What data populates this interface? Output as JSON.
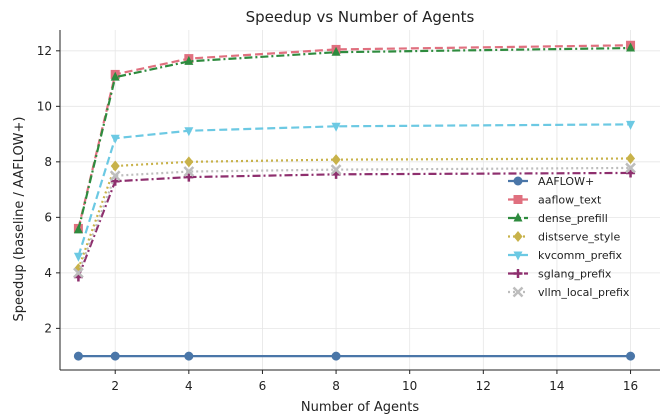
{
  "chart_data": {
    "type": "line",
    "title": "Speedup vs Number of Agents",
    "xlabel": "Number of Agents",
    "ylabel": "Speedup (baseline / AAFLOW+)",
    "x": [
      1,
      2,
      4,
      8,
      16
    ],
    "xlim": [
      0.5,
      16.8
    ],
    "ylim": [
      0.5,
      12.75
    ],
    "xticks": [
      2,
      4,
      6,
      8,
      10,
      12,
      14,
      16
    ],
    "yticks": [
      2,
      4,
      6,
      8,
      10,
      12
    ],
    "grid": true,
    "legend_position": "center-right",
    "series": [
      {
        "name": "AAFLOW+",
        "values": [
          1.0,
          1.0,
          1.0,
          1.0,
          1.0
        ],
        "color": "#4a76a8",
        "dash": "solid",
        "marker": "circle"
      },
      {
        "name": "aaflow_text",
        "values": [
          5.6,
          11.15,
          11.72,
          12.05,
          12.2
        ],
        "color": "#e0707f",
        "dash": "dashed",
        "marker": "square"
      },
      {
        "name": "dense_prefill",
        "values": [
          5.55,
          11.05,
          11.62,
          11.95,
          12.1
        ],
        "color": "#2e8b3e",
        "dash": "dashdot",
        "marker": "triangle-up"
      },
      {
        "name": "distserve_style",
        "values": [
          4.15,
          7.85,
          8.0,
          8.08,
          8.12
        ],
        "color": "#c8b24a",
        "dash": "dotted",
        "marker": "diamond"
      },
      {
        "name": "kvcomm_prefix",
        "values": [
          4.6,
          8.85,
          9.12,
          9.28,
          9.35
        ],
        "color": "#6cc9e3",
        "dash": "dashed",
        "marker": "triangle-down"
      },
      {
        "name": "sglang_prefix",
        "values": [
          3.85,
          7.3,
          7.45,
          7.55,
          7.6
        ],
        "color": "#8e2f6e",
        "dash": "dashdot",
        "marker": "plus"
      },
      {
        "name": "vllm_local_prefix",
        "values": [
          4.0,
          7.5,
          7.65,
          7.72,
          7.78
        ],
        "color": "#bdbdbd",
        "dash": "dotted",
        "marker": "x"
      }
    ]
  }
}
